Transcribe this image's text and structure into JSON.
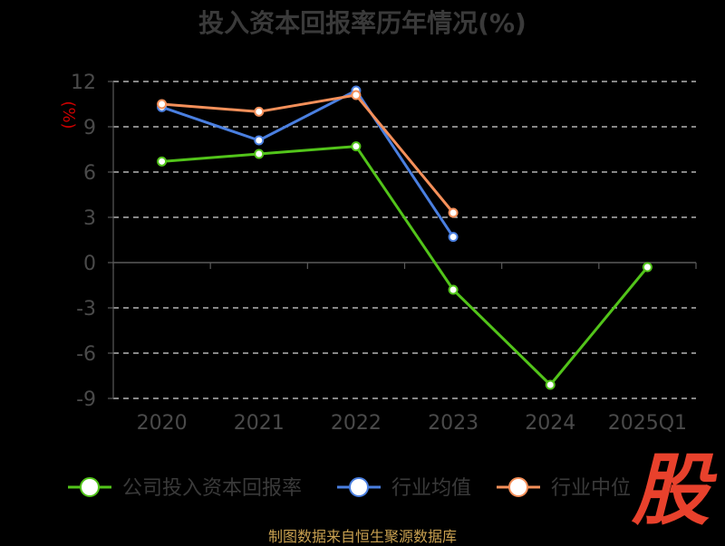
{
  "chart_data": {
    "type": "line",
    "title": "投入资本回报率历年情况(%)",
    "ylabel": "(%)",
    "categories": [
      "2020",
      "2021",
      "2022",
      "2023",
      "2024",
      "2025Q1"
    ],
    "ylim": [
      -9,
      12
    ],
    "yticks": [
      "12",
      "9",
      "6",
      "3",
      "0",
      "-3",
      "-6",
      "-9"
    ],
    "ytick_values": [
      12,
      9,
      6,
      3,
      0,
      -3,
      -6,
      -9
    ],
    "grid": true,
    "legend_position": "bottom",
    "series": [
      {
        "name": "公司投入资本回报率",
        "color": "#52c41a",
        "values": [
          6.7,
          7.2,
          7.7,
          -1.8,
          -8.1,
          -0.3
        ]
      },
      {
        "name": "行业均值",
        "color": "#4a7fe0",
        "values": [
          10.3,
          8.1,
          11.4,
          1.7,
          null,
          null
        ]
      },
      {
        "name": "行业中位",
        "color": "#f5905a",
        "values": [
          10.5,
          10.0,
          11.1,
          3.3,
          null,
          null
        ]
      }
    ]
  },
  "source": "制图数据来自恒生聚源数据库",
  "logo_text": "股"
}
